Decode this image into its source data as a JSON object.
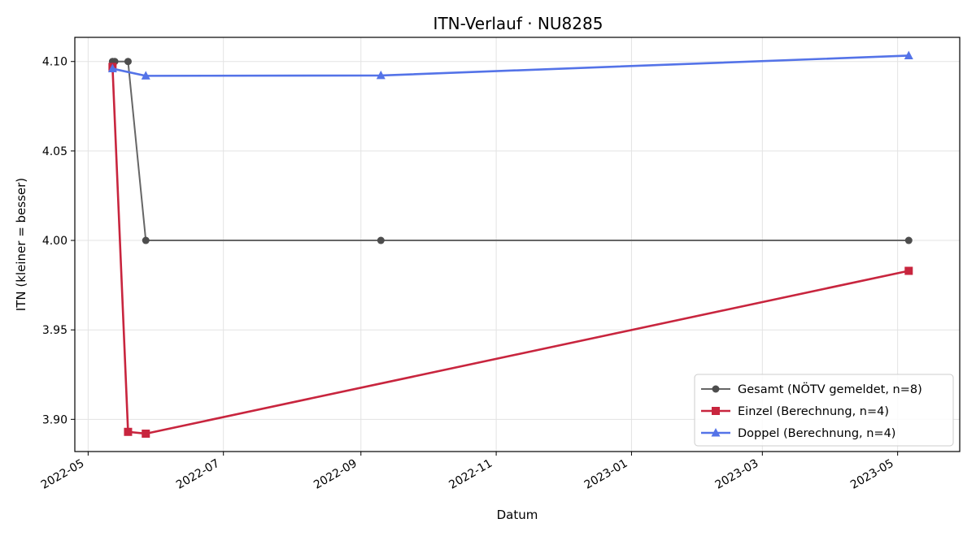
{
  "chart_data": {
    "type": "line",
    "title": "ITN-Verlauf · NU8285",
    "xlabel": "Datum",
    "ylabel": "ITN  (kleiner = besser)",
    "x_type": "date",
    "xlim": [
      "2022-04-25",
      "2023-05-29"
    ],
    "ylim": [
      3.882,
      4.1135
    ],
    "x_ticks": [
      "2022-05-01",
      "2022-07-01",
      "2022-09-01",
      "2022-11-01",
      "2023-01-01",
      "2023-03-01",
      "2023-05-01"
    ],
    "x_tick_labels": [
      "2022-05",
      "2022-07",
      "2022-09",
      "2022-11",
      "2023-01",
      "2023-03",
      "2023-05"
    ],
    "y_ticks": [
      3.9,
      3.95,
      4.0,
      4.05,
      4.1
    ],
    "y_tick_labels": [
      "3.90",
      "3.95",
      "4.00",
      "4.05",
      "4.10"
    ],
    "grid": true,
    "legend_position": "bottom-right",
    "series": [
      {
        "name": "Gesamt (NÖTV gemeldet, n=8)",
        "color": "#666666",
        "marker": "circle",
        "points": [
          {
            "x": "2022-05-12",
            "y": 4.1
          },
          {
            "x": "2022-05-13",
            "y": 4.1
          },
          {
            "x": "2022-05-19",
            "y": 4.1
          },
          {
            "x": "2022-05-27",
            "y": 4.0
          },
          {
            "x": "2022-09-10",
            "y": 4.0
          },
          {
            "x": "2023-05-06",
            "y": 4.0
          }
        ]
      },
      {
        "name": "Einzel (Berechnung, n=4)",
        "color": "#c8253e",
        "marker": "square",
        "points": [
          {
            "x": "2022-05-12",
            "y": 4.097
          },
          {
            "x": "2022-05-19",
            "y": 3.893
          },
          {
            "x": "2022-05-27",
            "y": 3.892
          },
          {
            "x": "2023-05-06",
            "y": 3.983
          }
        ]
      },
      {
        "name": "Doppel (Berechnung, n=4)",
        "color": "#5473e8",
        "marker": "triangle",
        "points": [
          {
            "x": "2022-05-12",
            "y": 4.096
          },
          {
            "x": "2022-05-27",
            "y": 4.092
          },
          {
            "x": "2022-09-10",
            "y": 4.0922
          },
          {
            "x": "2023-05-06",
            "y": 4.1033
          }
        ]
      }
    ]
  }
}
